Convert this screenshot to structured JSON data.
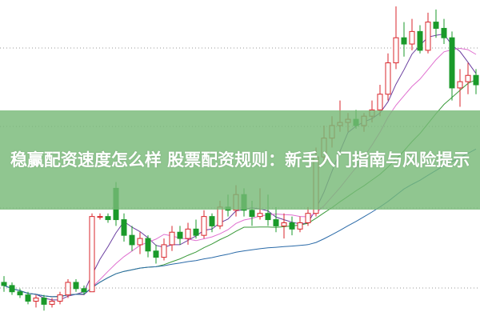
{
  "title": "稳赢配资速度怎么样 股票配资规则：新手入门指南与风险提示",
  "chart_data": {
    "type": "candlestick",
    "ylim": [
      0,
      100
    ],
    "grid": "dotted horizontal",
    "up_color": "#d9262b",
    "down_color": "#1a9a2a",
    "ohlc": [
      [
        12,
        14,
        9,
        11
      ],
      [
        11,
        12,
        8,
        9
      ],
      [
        9,
        10,
        7,
        8
      ],
      [
        8,
        9,
        5,
        6
      ],
      [
        6,
        8,
        4,
        7
      ],
      [
        7,
        8,
        3,
        5
      ],
      [
        5,
        7,
        4,
        6
      ],
      [
        6,
        9,
        5,
        8
      ],
      [
        8,
        13,
        7,
        12
      ],
      [
        12,
        13,
        9,
        10
      ],
      [
        10,
        11,
        8,
        9
      ],
      [
        9,
        34,
        9,
        33
      ],
      [
        33,
        34,
        32,
        33
      ],
      [
        33,
        34,
        31,
        32
      ],
      [
        42,
        44,
        30,
        32
      ],
      [
        32,
        34,
        25,
        27
      ],
      [
        27,
        30,
        22,
        24
      ],
      [
        24,
        28,
        21,
        26
      ],
      [
        26,
        27,
        20,
        22
      ],
      [
        22,
        24,
        18,
        20
      ],
      [
        20,
        26,
        19,
        24
      ],
      [
        24,
        30,
        22,
        28
      ],
      [
        28,
        30,
        24,
        26
      ],
      [
        26,
        31,
        24,
        29
      ],
      [
        29,
        32,
        26,
        27
      ],
      [
        27,
        35,
        26,
        33
      ],
      [
        33,
        34,
        28,
        30
      ],
      [
        30,
        38,
        29,
        36
      ],
      [
        36,
        40,
        33,
        35
      ],
      [
        35,
        43,
        33,
        40
      ],
      [
        40,
        42,
        33,
        35
      ],
      [
        35,
        38,
        30,
        33
      ],
      [
        33,
        42,
        32,
        34
      ],
      [
        34,
        40,
        30,
        32
      ],
      [
        32,
        36,
        28,
        30
      ],
      [
        30,
        34,
        26,
        31
      ],
      [
        31,
        33,
        27,
        29
      ],
      [
        29,
        33,
        28,
        31
      ],
      [
        31,
        36,
        30,
        34
      ],
      [
        34,
        55,
        33,
        52
      ],
      [
        52,
        62,
        50,
        58
      ],
      [
        58,
        65,
        55,
        62
      ],
      [
        62,
        70,
        60,
        63
      ],
      [
        63,
        66,
        60,
        64
      ],
      [
        64,
        67,
        61,
        62
      ],
      [
        62,
        66,
        60,
        65
      ],
      [
        65,
        70,
        63,
        67
      ],
      [
        67,
        75,
        65,
        72
      ],
      [
        72,
        85,
        70,
        82
      ],
      [
        82,
        100,
        80,
        90
      ],
      [
        90,
        95,
        84,
        88
      ],
      [
        88,
        96,
        86,
        92
      ],
      [
        92,
        94,
        85,
        86
      ],
      [
        86,
        98,
        85,
        95
      ],
      [
        95,
        99,
        90,
        93
      ],
      [
        93,
        96,
        88,
        90
      ],
      [
        90,
        92,
        70,
        74
      ],
      [
        74,
        80,
        68,
        76
      ],
      [
        76,
        82,
        72,
        78
      ],
      [
        78,
        80,
        72,
        75
      ]
    ],
    "moving_averages": [
      {
        "period": 5,
        "color": "#6b3fa0"
      },
      {
        "period": 10,
        "color": "#e070d0"
      },
      {
        "period": 20,
        "color": "#3a9a3a"
      },
      {
        "period": 40,
        "color": "#2a6aa8"
      }
    ]
  }
}
